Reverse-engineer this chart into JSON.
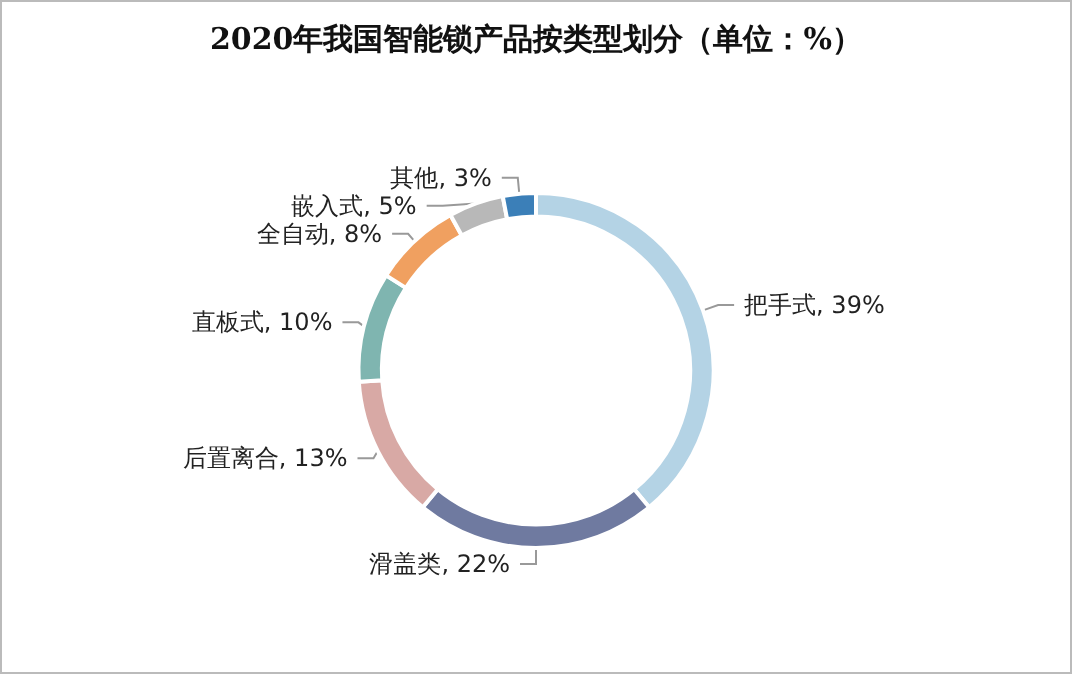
{
  "chart_data": {
    "type": "donut",
    "title": "2020年我国智能锁产品按类型划分（单位：%）",
    "categories": [
      "把手式",
      "滑盖类",
      "后置离合",
      "直板式",
      "全自动",
      "嵌入式",
      "其他"
    ],
    "values": [
      39,
      22,
      13,
      10,
      8,
      5,
      3
    ],
    "value_labels": [
      "39%",
      "22%",
      "13%",
      "10%",
      "8%",
      "5%",
      "3%"
    ],
    "colors": [
      "#b4d3e5",
      "#6f7aa0",
      "#d8a9a5",
      "#7fb5b0",
      "#f0a060",
      "#b8b8b8",
      "#3b7fb8"
    ],
    "legend": false
  }
}
